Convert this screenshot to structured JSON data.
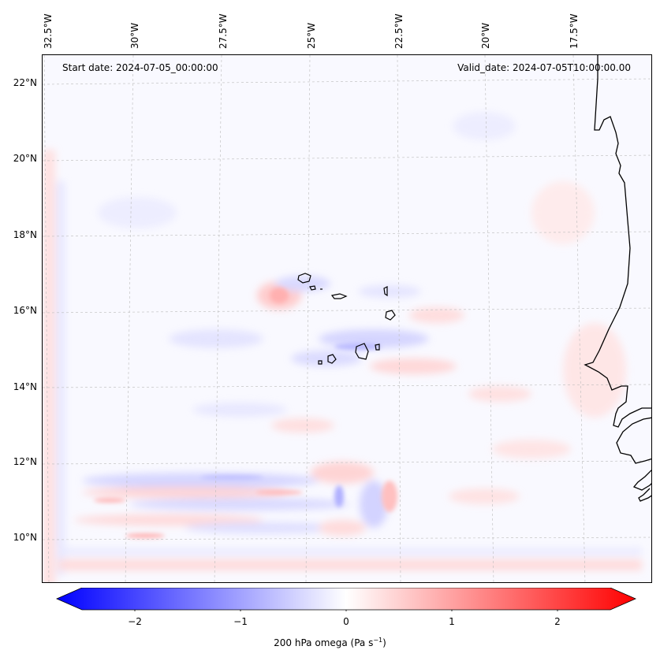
{
  "header": {
    "start_date": "Start date: 2024-07-05_00:00:00",
    "valid_date": "Valid_date: 2024-07-05T10:00:00.00"
  },
  "map": {
    "lon_labels": [
      "32.5°W",
      "30°W",
      "27.5°W",
      "25°W",
      "22.5°W",
      "20°W",
      "17.5°W"
    ],
    "lat_labels": [
      "22°N",
      "20°N",
      "18°N",
      "16°N",
      "14°N",
      "12°N",
      "10°N"
    ],
    "field_colors": {
      "negative": "#0000ff",
      "zero": "#ffffff",
      "positive": "#ff0000"
    },
    "features": [
      "cabo-verde-islands",
      "west-africa-coastline",
      "graticule"
    ]
  },
  "colorbar": {
    "ticks": [
      "−2",
      "−1",
      "0",
      "1",
      "2"
    ],
    "tick_values": [
      -2,
      -1,
      0,
      1,
      2
    ],
    "range": [
      -2.5,
      2.5
    ],
    "label_prefix": "200 hPa omega (Pa s",
    "label_exp": "−1",
    "label_suffix": ")"
  }
}
